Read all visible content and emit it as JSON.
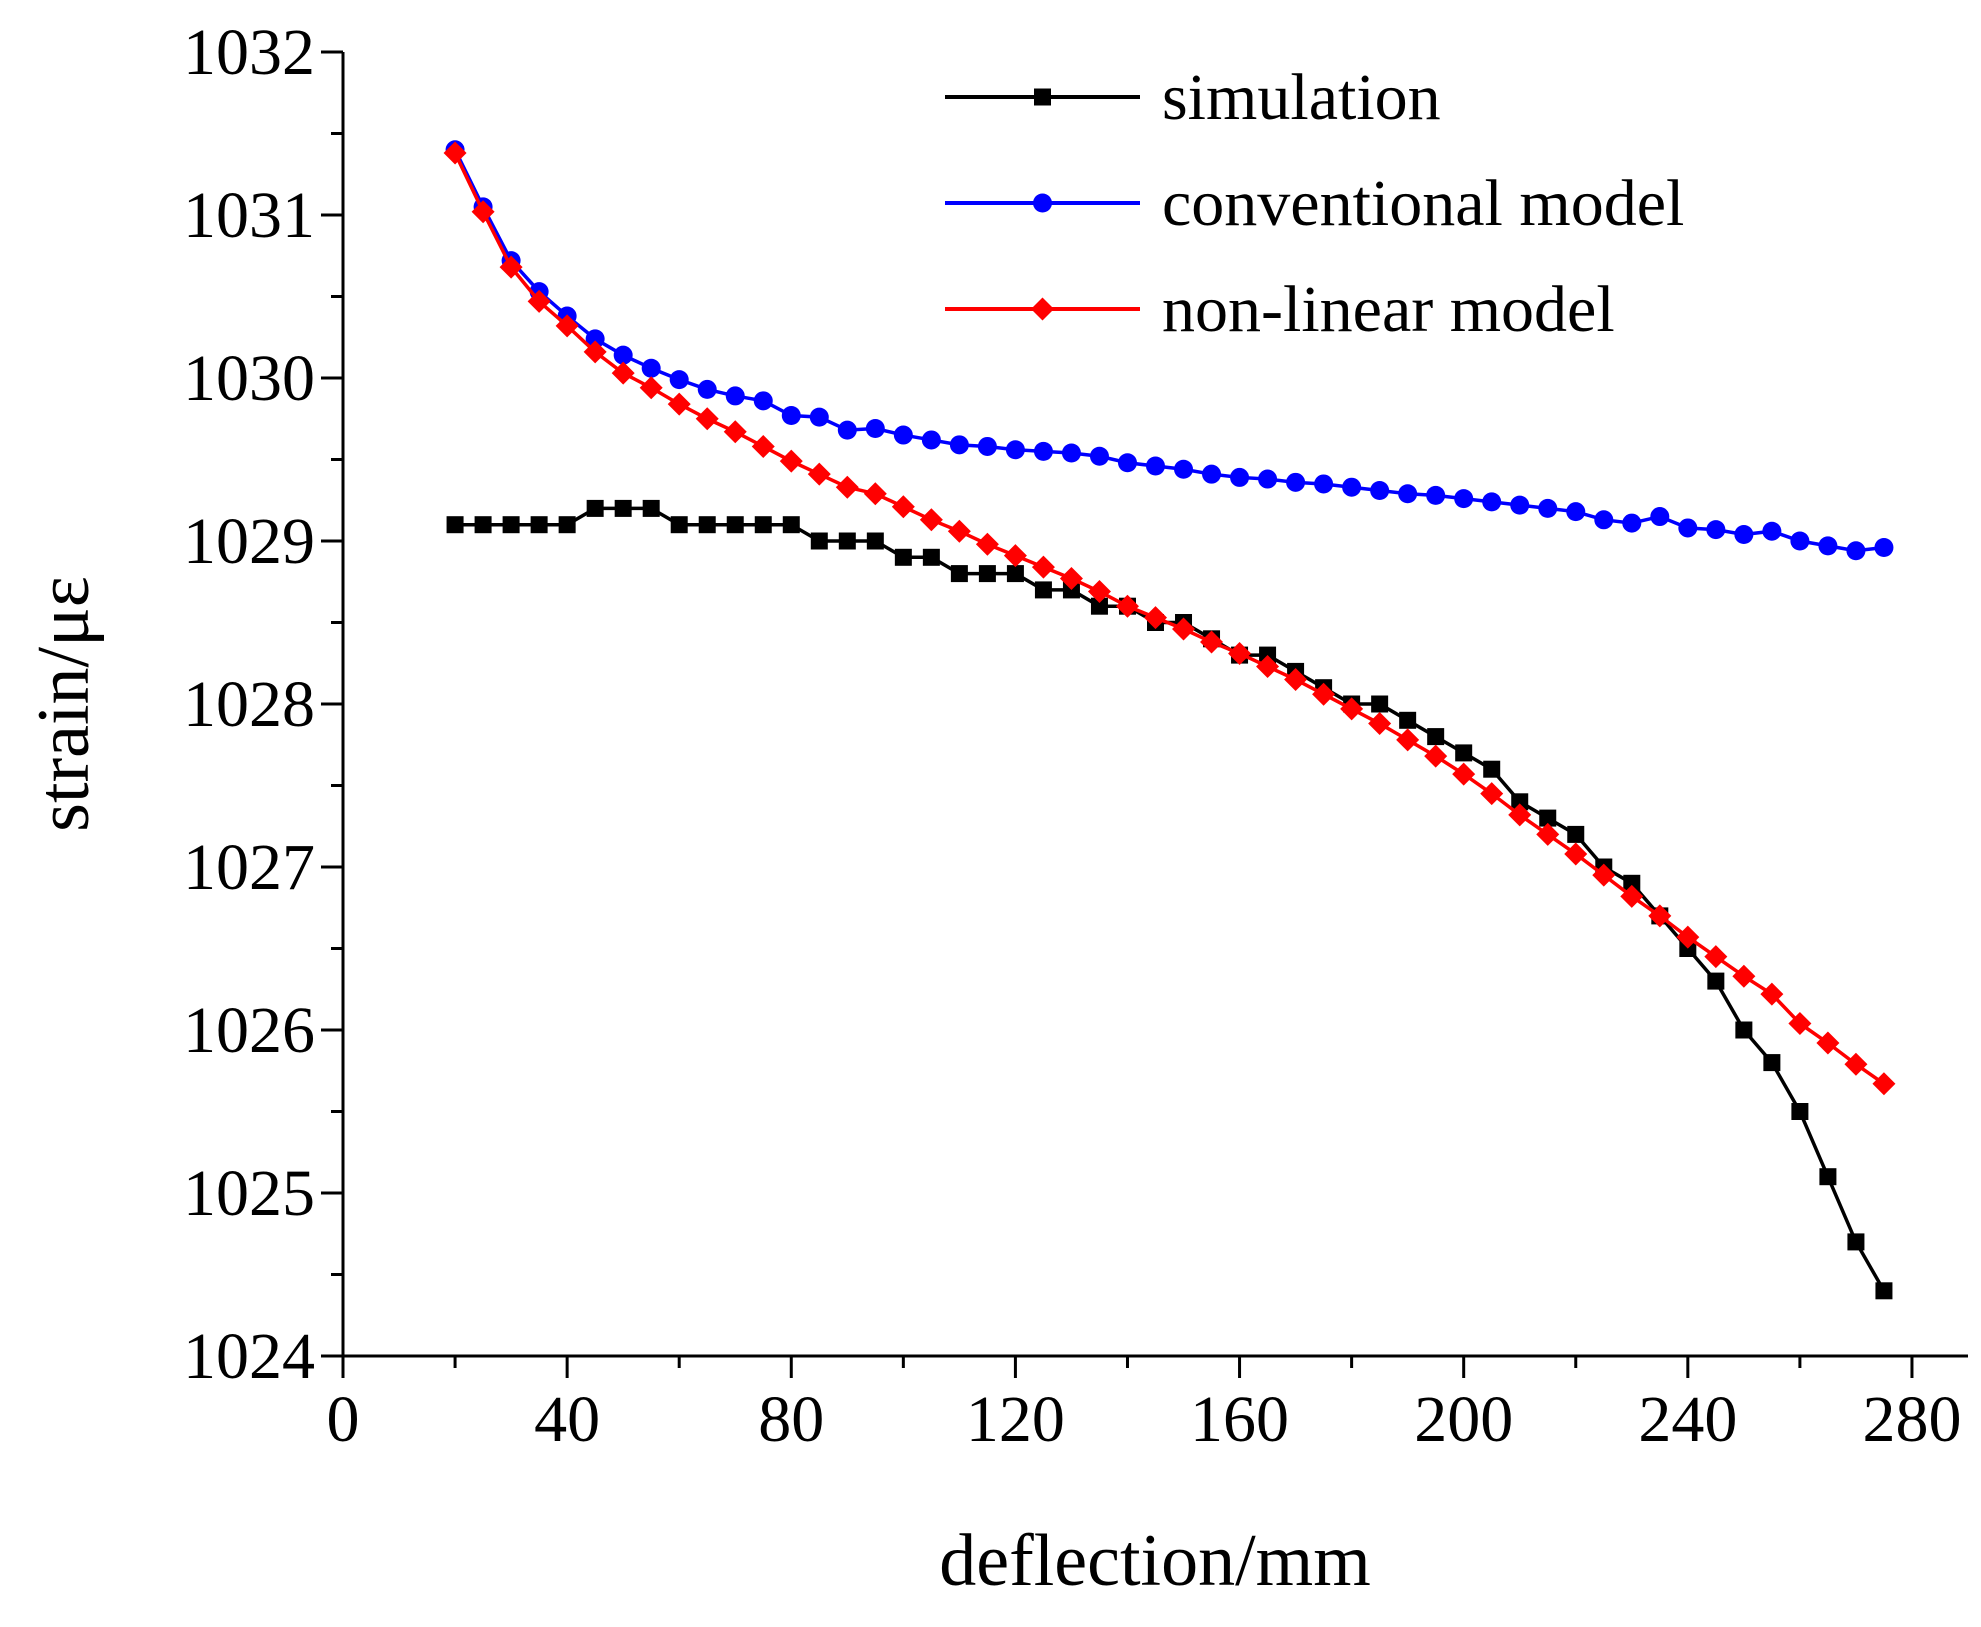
{
  "chart_data": {
    "type": "line",
    "title": "",
    "xlabel": "deflection/mm",
    "ylabel": "strain/με",
    "xlim": [
      0,
      290
    ],
    "ylim": [
      1024,
      1032
    ],
    "xticks": [
      "0",
      "40",
      "80",
      "120",
      "160",
      "200",
      "240",
      "280"
    ],
    "yticks": [
      "1024",
      "1025",
      "1026",
      "1027",
      "1028",
      "1029",
      "1030",
      "1031",
      "1032"
    ],
    "legend_position": "top-right",
    "x": [
      20,
      25,
      30,
      35,
      40,
      45,
      50,
      55,
      60,
      65,
      70,
      75,
      80,
      85,
      90,
      95,
      100,
      105,
      110,
      115,
      120,
      125,
      130,
      135,
      140,
      145,
      150,
      155,
      160,
      165,
      170,
      175,
      180,
      185,
      190,
      195,
      200,
      205,
      210,
      215,
      220,
      225,
      230,
      235,
      240,
      245,
      250,
      255,
      260,
      265,
      270,
      275
    ],
    "series": [
      {
        "name": "simulation",
        "color": "#000000",
        "marker": "square",
        "values": [
          1029.1,
          1029.1,
          1029.1,
          1029.1,
          1029.1,
          1029.2,
          1029.2,
          1029.2,
          1029.1,
          1029.1,
          1029.1,
          1029.1,
          1029.1,
          1029.0,
          1029.0,
          1029.0,
          1028.9,
          1028.9,
          1028.8,
          1028.8,
          1028.8,
          1028.7,
          1028.7,
          1028.6,
          1028.6,
          1028.5,
          1028.5,
          1028.4,
          1028.3,
          1028.3,
          1028.2,
          1028.1,
          1028.0,
          1028.0,
          1027.9,
          1027.8,
          1027.7,
          1027.6,
          1027.4,
          1027.3,
          1027.2,
          1027.0,
          1026.9,
          1026.7,
          1026.5,
          1026.3,
          1026.0,
          1025.8,
          1025.5,
          1025.1,
          1024.7,
          1024.4
        ]
      },
      {
        "name": "conventional model",
        "color": "#0000ff",
        "marker": "circle",
        "values": [
          1031.4,
          1031.05,
          1030.72,
          1030.53,
          1030.38,
          1030.24,
          1030.14,
          1030.06,
          1029.99,
          1029.93,
          1029.89,
          1029.86,
          1029.77,
          1029.76,
          1029.68,
          1029.69,
          1029.65,
          1029.62,
          1029.59,
          1029.58,
          1029.56,
          1029.55,
          1029.54,
          1029.52,
          1029.48,
          1029.46,
          1029.44,
          1029.41,
          1029.39,
          1029.38,
          1029.36,
          1029.35,
          1029.33,
          1029.31,
          1029.29,
          1029.28,
          1029.26,
          1029.24,
          1029.22,
          1029.2,
          1029.18,
          1029.13,
          1029.11,
          1029.15,
          1029.08,
          1029.07,
          1029.04,
          1029.06,
          1029.0,
          1028.97,
          1028.94,
          1028.96
        ]
      },
      {
        "name": "non-linear model",
        "color": "#ff0000",
        "marker": "diamond",
        "values": [
          1031.38,
          1031.02,
          1030.68,
          1030.47,
          1030.32,
          1030.16,
          1030.03,
          1029.94,
          1029.84,
          1029.75,
          1029.67,
          1029.58,
          1029.49,
          1029.41,
          1029.33,
          1029.29,
          1029.21,
          1029.13,
          1029.06,
          1028.98,
          1028.91,
          1028.84,
          1028.77,
          1028.69,
          1028.6,
          1028.53,
          1028.46,
          1028.38,
          1028.31,
          1028.23,
          1028.15,
          1028.06,
          1027.97,
          1027.88,
          1027.78,
          1027.68,
          1027.57,
          1027.45,
          1027.32,
          1027.2,
          1027.08,
          1026.95,
          1026.82,
          1026.7,
          1026.57,
          1026.45,
          1026.33,
          1026.22,
          1026.04,
          1025.92,
          1025.79,
          1025.67
        ]
      }
    ]
  }
}
